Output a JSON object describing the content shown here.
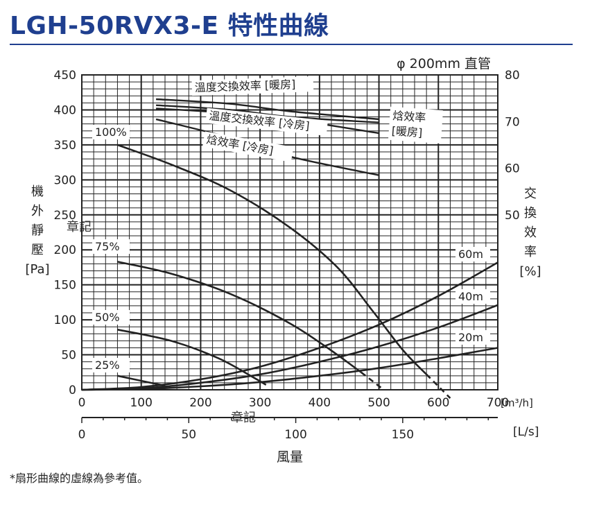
{
  "title": "LGH-50RVX3-E 特性曲線",
  "footnote": "*扇形曲線的虛線為參考值。",
  "watermarks": [
    "章記",
    "章記"
  ],
  "chart_data": {
    "type": "line",
    "pipe_label": "φ 200mm 直管",
    "ylabel_left": [
      "機",
      "外",
      "靜",
      "壓",
      "[Pa]"
    ],
    "ylabel_right": [
      "交",
      "換",
      "效",
      "率",
      "[%]"
    ],
    "xlabel": "風量",
    "x_unit_top": "[m³/h]",
    "x_unit_bottom": "[L/s]",
    "xlim": [
      0,
      700
    ],
    "ylim_left": [
      0,
      450
    ],
    "ylim_right": [
      50,
      80
    ],
    "x_ticks": [
      "0",
      "100",
      "200",
      "300",
      "400",
      "500",
      "600",
      "700"
    ],
    "y_ticks_left": [
      "0",
      "50",
      "100",
      "150",
      "200",
      "250",
      "300",
      "350",
      "400",
      "450"
    ],
    "y_ticks_right": [
      "50",
      "60",
      "70",
      "80"
    ],
    "x2_ticks": [
      {
        "value": 0,
        "label": "0"
      },
      {
        "value": 50,
        "label": "50"
      },
      {
        "value": 100,
        "label": "100"
      },
      {
        "value": 150,
        "label": "150"
      }
    ],
    "fan_curves": [
      {
        "name": "100%",
        "points": [
          [
            60,
            350
          ],
          [
            150,
            322
          ],
          [
            250,
            285
          ],
          [
            350,
            232
          ],
          [
            430,
            175
          ],
          [
            490,
            112
          ],
          [
            540,
            57
          ],
          [
            580,
            22
          ]
        ],
        "dashed": [
          [
            580,
            22
          ],
          [
            620,
            -12
          ]
        ]
      },
      {
        "name": "75%",
        "points": [
          [
            60,
            183
          ],
          [
            150,
            166
          ],
          [
            250,
            137
          ],
          [
            350,
            95
          ],
          [
            420,
            56
          ],
          [
            470,
            25
          ]
        ],
        "dashed": [
          [
            470,
            25
          ],
          [
            505,
            2
          ]
        ]
      },
      {
        "name": "50%",
        "points": [
          [
            60,
            86
          ],
          [
            150,
            70
          ],
          [
            230,
            45
          ],
          [
            290,
            17
          ],
          [
            310,
            7
          ]
        ],
        "dashed": []
      },
      {
        "name": "25%",
        "points": [
          [
            60,
            20
          ],
          [
            110,
            11
          ],
          [
            140,
            6
          ]
        ],
        "dashed": []
      }
    ],
    "duct_curves": [
      {
        "name": "60m",
        "points": [
          [
            0,
            0
          ],
          [
            100,
            4
          ],
          [
            200,
            15
          ],
          [
            300,
            33
          ],
          [
            400,
            60
          ],
          [
            500,
            93
          ],
          [
            600,
            134
          ],
          [
            700,
            182
          ]
        ]
      },
      {
        "name": "40m",
        "points": [
          [
            0,
            0
          ],
          [
            100,
            2
          ],
          [
            200,
            10
          ],
          [
            300,
            22
          ],
          [
            400,
            40
          ],
          [
            500,
            62
          ],
          [
            600,
            89
          ],
          [
            700,
            121
          ]
        ]
      },
      {
        "name": "20m",
        "points": [
          [
            0,
            0
          ],
          [
            100,
            1
          ],
          [
            200,
            5
          ],
          [
            300,
            11
          ],
          [
            400,
            20
          ],
          [
            500,
            31
          ],
          [
            600,
            45
          ],
          [
            700,
            60
          ]
        ]
      }
    ],
    "efficiency_curves": [
      {
        "name": "溫度交換效率 [暖房]",
        "points": [
          [
            125,
            74.8
          ],
          [
            250,
            73.8
          ],
          [
            350,
            72.2
          ],
          [
            500,
            70.5
          ]
        ]
      },
      {
        "name": "溫度交換效率 [冷房]",
        "points": [
          [
            125,
            73.5
          ],
          [
            250,
            72.5
          ],
          [
            350,
            71.0
          ],
          [
            500,
            69.8
          ]
        ]
      },
      {
        "name": "焓效率 [暖房]",
        "points": [
          [
            125,
            72.8
          ],
          [
            250,
            71.8
          ],
          [
            350,
            70.5
          ],
          [
            500,
            67.5
          ]
        ]
      },
      {
        "name": "焓效率 [冷房]",
        "points": [
          [
            125,
            70.5
          ],
          [
            250,
            66.5
          ],
          [
            350,
            62.5
          ],
          [
            500,
            58.5
          ]
        ]
      }
    ]
  }
}
